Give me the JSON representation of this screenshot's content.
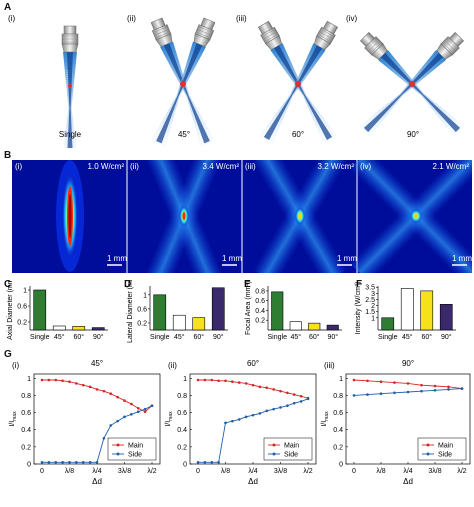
{
  "panel_a": {
    "label": "A",
    "subpanels": [
      {
        "id": "(i)",
        "caption": "Single"
      },
      {
        "id": "(ii)",
        "caption": "45°"
      },
      {
        "id": "(iii)",
        "caption": "60°"
      },
      {
        "id": "(iv)",
        "caption": "90°"
      }
    ]
  },
  "panel_b": {
    "label": "B",
    "subpanels": [
      {
        "id": "(i)",
        "intensity": "1.0 W/cm²",
        "scale": "1 mm"
      },
      {
        "id": "(ii)",
        "intensity": "3.4 W/cm²",
        "scale": "1 mm"
      },
      {
        "id": "(iii)",
        "intensity": "3.2 W/cm²",
        "scale": "1 mm"
      },
      {
        "id": "(iv)",
        "intensity": "2.1 W/cm²",
        "scale": "1 mm"
      }
    ]
  },
  "chart_data": [
    {
      "id": "C",
      "type": "bar",
      "ylabel": "Axial Diameter (mm)",
      "categories": [
        "Single",
        "45°",
        "60°",
        "90°"
      ],
      "values": [
        1.0,
        0.1,
        0.09,
        0.06
      ],
      "ylim": [
        0,
        1.1
      ],
      "yticks": [
        "0.2",
        "0.6",
        "1"
      ],
      "colors": [
        "#2e7d32",
        "#ffffff",
        "#f5e21b",
        "#3b2a6b"
      ]
    },
    {
      "id": "D",
      "type": "bar",
      "ylabel": "Lateral Diameter (mm)",
      "categories": [
        "Single",
        "45°",
        "60°",
        "90°"
      ],
      "values": [
        1.0,
        0.42,
        0.35,
        1.2
      ],
      "ylim": [
        0,
        1.25
      ],
      "yticks": [
        "0.2",
        "0.6",
        "1"
      ],
      "colors": [
        "#2e7d32",
        "#ffffff",
        "#f5e21b",
        "#3b2a6b"
      ]
    },
    {
      "id": "E",
      "type": "bar",
      "ylabel": "Focal Area (mm²)",
      "categories": [
        "Single",
        "45°",
        "60°",
        "90°"
      ],
      "values": [
        0.78,
        0.17,
        0.14,
        0.1
      ],
      "ylim": [
        0,
        0.9
      ],
      "yticks": [
        "0.2",
        "0.4",
        "0.6",
        "0.8"
      ],
      "colors": [
        "#2e7d32",
        "#ffffff",
        "#f5e21b",
        "#3b2a6b"
      ]
    },
    {
      "id": "F",
      "type": "bar",
      "ylabel": "Intensity (W/cm²)",
      "categories": [
        "Single",
        "45°",
        "60°",
        "90°"
      ],
      "values": [
        1.0,
        3.4,
        3.2,
        2.1
      ],
      "ylim": [
        0,
        3.6
      ],
      "yticks": [
        "1",
        "1.5",
        "2",
        "2.5",
        "3",
        "3.5"
      ],
      "colors": [
        "#2e7d32",
        "#ffffff",
        "#f5e21b",
        "#3b2a6b"
      ]
    },
    {
      "id": "G(i)",
      "type": "line",
      "title": "45°",
      "xlabel": "Δd",
      "ylabel": "I/I",
      "x": [
        "0",
        "λ/8",
        "λ/4",
        "3λ/8",
        "λ/2"
      ],
      "xticks": [
        "0",
        "λ/8",
        "λ/4",
        "3λ/8",
        "λ/2"
      ],
      "yticks": [
        "0",
        "0.2",
        "0.4",
        "0.6",
        "0.8",
        "1"
      ],
      "ylim": [
        0,
        1.05
      ],
      "series": [
        {
          "name": "Main",
          "color": "#d62728",
          "values": [
            [
              0,
              0.98
            ],
            [
              0.25,
              0.98
            ],
            [
              0.5,
              0.98
            ],
            [
              0.75,
              0.97
            ],
            [
              1,
              0.96
            ],
            [
              1.25,
              0.94
            ],
            [
              1.5,
              0.92
            ],
            [
              1.75,
              0.9
            ],
            [
              2,
              0.87
            ],
            [
              2.25,
              0.85
            ],
            [
              2.5,
              0.82
            ],
            [
              2.75,
              0.78
            ],
            [
              3,
              0.74
            ],
            [
              3.25,
              0.7
            ],
            [
              3.5,
              0.65
            ],
            [
              3.75,
              0.61
            ],
            [
              4,
              0.68
            ]
          ]
        },
        {
          "name": "Side",
          "color": "#1f5fa8",
          "values": [
            [
              0,
              0.02
            ],
            [
              0.25,
              0.02
            ],
            [
              0.5,
              0.02
            ],
            [
              0.75,
              0.02
            ],
            [
              1,
              0.02
            ],
            [
              1.25,
              0.02
            ],
            [
              1.5,
              0.02
            ],
            [
              1.75,
              0.02
            ],
            [
              2,
              0.02
            ],
            [
              2.25,
              0.3
            ],
            [
              2.5,
              0.45
            ],
            [
              2.75,
              0.5
            ],
            [
              3,
              0.55
            ],
            [
              3.25,
              0.58
            ],
            [
              3.5,
              0.61
            ],
            [
              3.75,
              0.64
            ],
            [
              4,
              0.68
            ]
          ]
        }
      ]
    },
    {
      "id": "G(ii)",
      "type": "line",
      "title": "60°",
      "xlabel": "Δd",
      "ylabel": "I/I",
      "x": [
        "0",
        "λ/8",
        "λ/4",
        "3λ/8",
        "λ/2"
      ],
      "xticks": [
        "0",
        "λ/8",
        "λ/4",
        "3λ/8",
        "λ/2"
      ],
      "yticks": [
        "0",
        "0.2",
        "0.4",
        "0.6",
        "0.8",
        "1"
      ],
      "ylim": [
        0,
        1.05
      ],
      "series": [
        {
          "name": "Main",
          "color": "#d62728",
          "values": [
            [
              0,
              0.98
            ],
            [
              0.25,
              0.98
            ],
            [
              0.5,
              0.98
            ],
            [
              0.75,
              0.97
            ],
            [
              1,
              0.97
            ],
            [
              1.25,
              0.96
            ],
            [
              1.5,
              0.95
            ],
            [
              1.75,
              0.94
            ],
            [
              2,
              0.92
            ],
            [
              2.25,
              0.9
            ],
            [
              2.5,
              0.89
            ],
            [
              2.75,
              0.87
            ],
            [
              3,
              0.85
            ],
            [
              3.25,
              0.83
            ],
            [
              3.5,
              0.81
            ],
            [
              3.75,
              0.79
            ],
            [
              4,
              0.77
            ]
          ]
        },
        {
          "name": "Side",
          "color": "#1f5fa8",
          "values": [
            [
              0,
              0.02
            ],
            [
              0.25,
              0.02
            ],
            [
              0.5,
              0.02
            ],
            [
              0.75,
              0.02
            ],
            [
              1,
              0.48
            ],
            [
              1.25,
              0.5
            ],
            [
              1.5,
              0.52
            ],
            [
              1.75,
              0.55
            ],
            [
              2,
              0.57
            ],
            [
              2.25,
              0.59
            ],
            [
              2.5,
              0.62
            ],
            [
              2.75,
              0.64
            ],
            [
              3,
              0.66
            ],
            [
              3.25,
              0.68
            ],
            [
              3.5,
              0.71
            ],
            [
              3.75,
              0.73
            ],
            [
              4,
              0.76
            ]
          ]
        }
      ]
    },
    {
      "id": "G(iii)",
      "type": "line",
      "title": "90°",
      "xlabel": "Δd",
      "ylabel": "I/I",
      "x": [
        "0",
        "λ/8",
        "λ/4",
        "3λ/8",
        "λ/2"
      ],
      "xticks": [
        "0",
        "λ/8",
        "λ/4",
        "3λ/8",
        "λ/2"
      ],
      "yticks": [
        "0",
        "0.2",
        "0.4",
        "0.6",
        "0.8",
        "1"
      ],
      "ylim": [
        0,
        1.05
      ],
      "series": [
        {
          "name": "Main",
          "color": "#d62728",
          "values": [
            [
              0,
              0.98
            ],
            [
              0.5,
              0.97
            ],
            [
              1,
              0.96
            ],
            [
              1.5,
              0.95
            ],
            [
              2,
              0.94
            ],
            [
              2.5,
              0.92
            ],
            [
              3,
              0.91
            ],
            [
              3.5,
              0.9
            ],
            [
              4,
              0.88
            ]
          ]
        },
        {
          "name": "Side",
          "color": "#1f5fa8",
          "values": [
            [
              0,
              0.8
            ],
            [
              0.5,
              0.81
            ],
            [
              1,
              0.82
            ],
            [
              1.5,
              0.83
            ],
            [
              2,
              0.84
            ],
            [
              2.5,
              0.85
            ],
            [
              3,
              0.86
            ],
            [
              3.5,
              0.87
            ],
            [
              4,
              0.88
            ]
          ]
        }
      ]
    }
  ],
  "panel_g": {
    "label": "G",
    "legend_main": "Main",
    "legend_side": "Side",
    "ylabel_sub": "max"
  },
  "colors": {
    "heat_bg": "#000c9a",
    "main": "#d62728",
    "side": "#1f5fa8",
    "single": "#2e7d32",
    "a45": "#ffffff",
    "a60": "#f5e21b",
    "a90": "#3b2a6b"
  }
}
